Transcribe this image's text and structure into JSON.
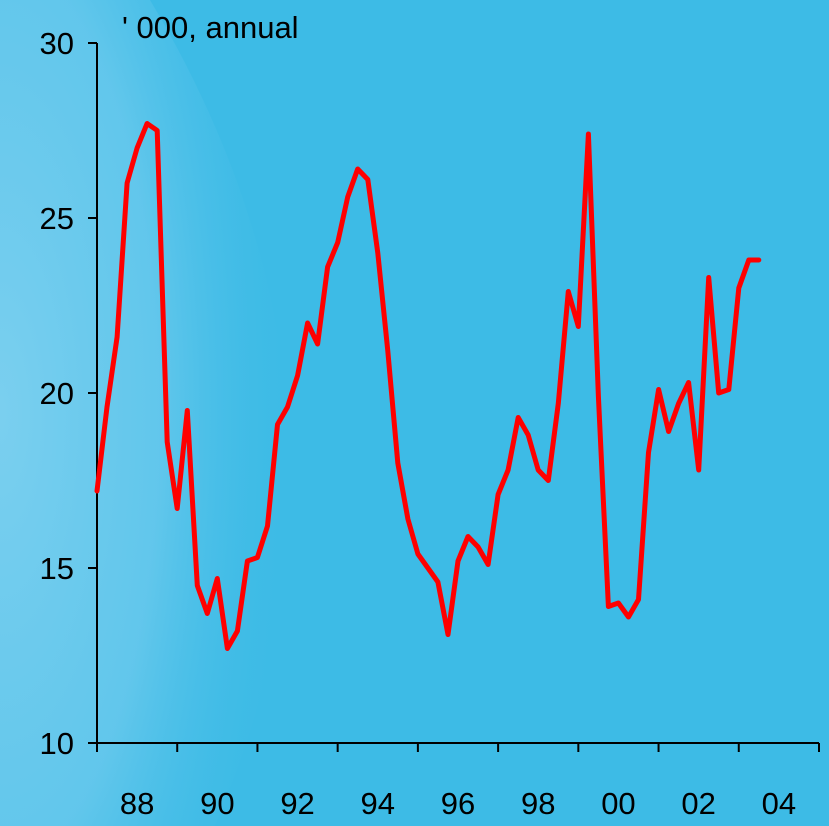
{
  "chart_data": {
    "type": "line",
    "unit_label": "' 000, annual",
    "y_ticks": [
      10,
      15,
      20,
      25,
      30
    ],
    "y_tick_labels": [
      "10",
      "15",
      "20",
      "25",
      "30"
    ],
    "ylim": [
      10,
      30
    ],
    "x_tick_labels": [
      "88",
      "90",
      "92",
      "94",
      "96",
      "98",
      "00",
      "02",
      "04"
    ],
    "xlim": [
      1987.5,
      2005.5
    ],
    "grid": false,
    "series_color": "#ff0000",
    "series": [
      {
        "x": [
          1987.5,
          1987.75,
          1988.0,
          1988.25,
          1988.5,
          1988.75,
          1989.0,
          1989.25,
          1989.5,
          1989.75,
          1990.0,
          1990.25,
          1990.5,
          1990.75,
          1991.0,
          1991.25,
          1991.5,
          1991.75,
          1992.0,
          1992.25,
          1992.5,
          1992.75,
          1993.0,
          1993.25,
          1993.5,
          1993.75,
          1994.0,
          1994.25,
          1994.5,
          1994.75,
          1995.0,
          1995.25,
          1995.5,
          1995.75,
          1996.0,
          1996.25,
          1996.5,
          1996.75,
          1997.0,
          1997.25,
          1997.5,
          1997.75,
          1998.0,
          1998.25,
          1998.5,
          1998.75,
          1999.0,
          1999.25,
          1999.5,
          1999.75,
          2000.0,
          2000.25,
          2000.5,
          2000.75,
          2001.0,
          2001.25,
          2001.5,
          2001.75,
          2002.0,
          2002.25,
          2002.5,
          2002.75,
          2003.0,
          2003.25,
          2003.5,
          2003.75,
          2004.0
        ],
        "values": [
          17.2,
          19.6,
          21.6,
          26.0,
          27.0,
          27.7,
          27.5,
          18.6,
          16.7,
          19.5,
          14.5,
          13.7,
          14.7,
          12.7,
          13.2,
          15.2,
          15.3,
          16.2,
          19.1,
          19.6,
          20.5,
          22.0,
          21.4,
          23.6,
          24.3,
          25.6,
          26.4,
          26.1,
          24.0,
          21.2,
          18.0,
          16.4,
          15.4,
          15.0,
          14.6,
          13.1,
          15.2,
          15.9,
          15.6,
          15.1,
          17.1,
          17.8,
          19.3,
          18.8,
          17.8,
          17.5,
          19.7,
          22.9,
          21.9,
          27.4,
          19.9,
          13.9,
          14.0,
          13.6,
          14.1,
          18.3,
          20.1,
          18.9,
          19.7,
          20.3,
          17.8,
          23.3,
          20.0,
          20.1,
          23.0,
          23.8,
          23.8
        ]
      }
    ]
  }
}
